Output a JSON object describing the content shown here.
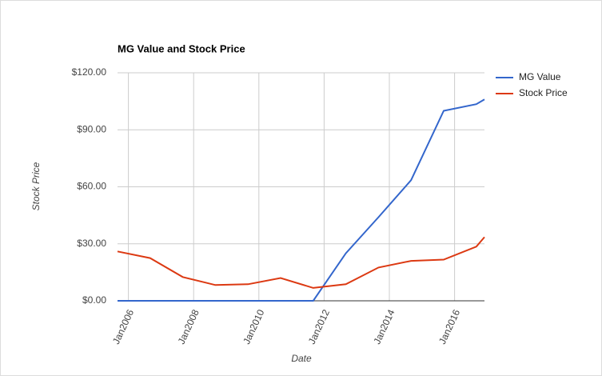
{
  "chart_data": {
    "type": "line",
    "title": "MG Value and Stock Price",
    "x_label": "Date",
    "y_label": "Stock Price",
    "x": [
      "2005-09",
      "2006-09",
      "2007-09",
      "2008-09",
      "2009-09",
      "2010-09",
      "2011-09",
      "2012-09",
      "2013-09",
      "2014-09",
      "2015-09",
      "2016-09",
      "2016-12"
    ],
    "series": [
      {
        "name": "MG Value",
        "color": "#3366cc",
        "values": [
          0,
          0,
          0,
          0,
          0,
          0,
          0,
          25,
          44,
          63.5,
          100,
          103.5,
          106
        ]
      },
      {
        "name": "Stock Price",
        "color": "#dc3912",
        "values": [
          26,
          22.5,
          12.5,
          8.3,
          8.7,
          12,
          6.8,
          8.7,
          17.5,
          21,
          21.7,
          28.5,
          33.5
        ]
      }
    ],
    "xlim": [
      "2005-09",
      "2016-12"
    ],
    "xticks": [
      {
        "value": "2006-01",
        "label": "Jan2006"
      },
      {
        "value": "2008-01",
        "label": "Jan2008"
      },
      {
        "value": "2010-01",
        "label": "Jan2010"
      },
      {
        "value": "2012-01",
        "label": "Jan2012"
      },
      {
        "value": "2014-01",
        "label": "Jan2014"
      },
      {
        "value": "2016-01",
        "label": "Jan2016"
      }
    ],
    "ylim": [
      0,
      120
    ],
    "yticks": [
      {
        "value": 0,
        "label": "$0.00"
      },
      {
        "value": 30,
        "label": "$30.00"
      },
      {
        "value": 60,
        "label": "$60.00"
      },
      {
        "value": 90,
        "label": "$90.00"
      },
      {
        "value": 120,
        "label": "$120.00"
      }
    ],
    "grid": true,
    "legend": "right"
  }
}
